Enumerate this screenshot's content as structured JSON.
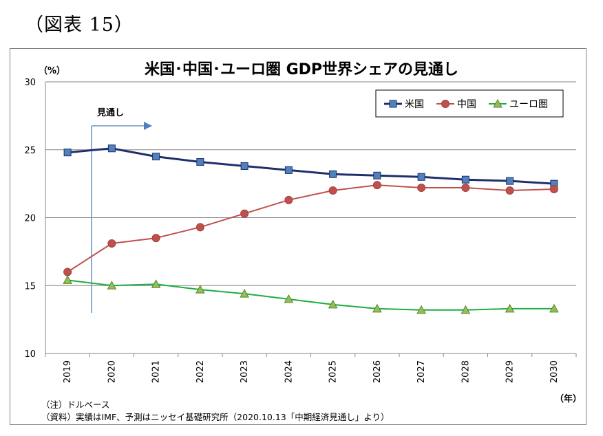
{
  "figure_label": "（図表 15）",
  "notes": {
    "note": "（注）ドルベース",
    "source": "（資料）実績はIMF、予測はニッセイ基礎研究所（2020.10.13「中期経済見通し」より）"
  },
  "chart_data": {
    "type": "line",
    "title": "米国･中国･ユーロ圏 GDP世界シェアの見通し",
    "ylabel": "（%）",
    "xlabel": "（年）",
    "ylim": [
      10,
      30
    ],
    "yticks": [
      "10",
      "15",
      "20",
      "25",
      "30"
    ],
    "grid": true,
    "legend_position": "top-right",
    "categories": [
      "2019",
      "2020",
      "2021",
      "2022",
      "2023",
      "2024",
      "2025",
      "2026",
      "2027",
      "2028",
      "2029",
      "2030"
    ],
    "annotation": "見通し",
    "series": [
      {
        "name": "米国",
        "color": "#1f2f6b",
        "marker": "square",
        "marker_color": "#4f81bd",
        "values": [
          24.8,
          25.1,
          24.5,
          24.1,
          23.8,
          23.5,
          23.2,
          23.1,
          23.0,
          22.8,
          22.7,
          22.5
        ]
      },
      {
        "name": "中国",
        "color": "#c0504d",
        "marker": "circle",
        "marker_color": "#c0504d",
        "values": [
          16.0,
          18.1,
          18.5,
          19.3,
          20.3,
          21.3,
          22.0,
          22.4,
          22.2,
          22.2,
          22.0,
          22.1
        ]
      },
      {
        "name": "ユーロ圏",
        "color": "#1aae3f",
        "marker": "triangle",
        "marker_color": "#9bbb59",
        "values": [
          15.4,
          15.0,
          15.1,
          14.7,
          14.4,
          14.0,
          13.6,
          13.3,
          13.2,
          13.2,
          13.3,
          13.3
        ]
      }
    ]
  }
}
